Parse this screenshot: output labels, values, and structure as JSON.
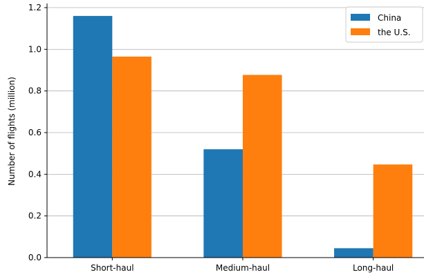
{
  "chart_data": {
    "type": "bar",
    "categories": [
      "Short-haul",
      "Medium-haul",
      "Long-haul"
    ],
    "series": [
      {
        "name": "China",
        "values": [
          1.16,
          0.52,
          0.045
        ],
        "color": "#1f77b4"
      },
      {
        "name": "the U.S.",
        "values": [
          0.965,
          0.877,
          0.447
        ],
        "color": "#ff7f0e"
      }
    ],
    "ylabel": "Number of flights (million)",
    "xlabel": "",
    "title": "",
    "ylim": [
      0,
      1.22
    ],
    "yticks": [
      0.0,
      0.2,
      0.4,
      0.6,
      0.8,
      1.0,
      1.2
    ],
    "ytick_labels": [
      "0.0",
      "0.2",
      "0.4",
      "0.6",
      "0.8",
      "1.0",
      "1.2"
    ],
    "grid": "horizontal",
    "legend_position": "top-right"
  }
}
